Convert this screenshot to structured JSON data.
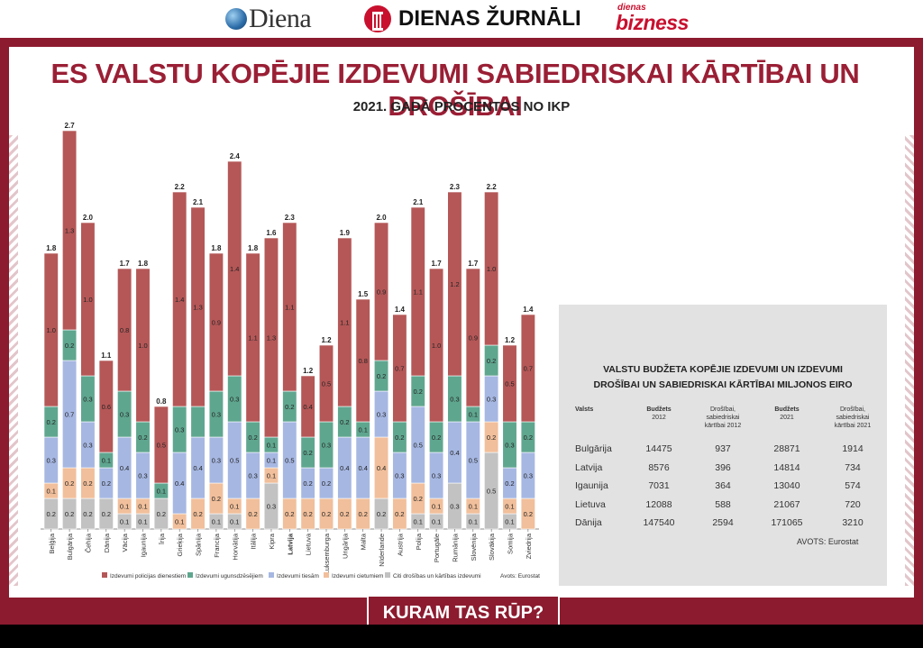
{
  "header": {
    "brands": [
      "Diena",
      "DIENAS ŽURNĀLI",
      "dienas",
      "bizness"
    ]
  },
  "title": "ES VALSTU KOPĒJIE IZDEVUMI SABIEDRISKAI KĀRTĪBAI UN DROŠĪBAI",
  "subtitle": "2021. GADĀ PROCENTOS NO IKP",
  "colors": {
    "police": "#b55757",
    "fire": "#5fa68f",
    "courts": "#a6b7e2",
    "prisons": "#f1bf9b",
    "other": "#c2c2c2",
    "frame": "#8c1b2f"
  },
  "chart_data": {
    "type": "bar",
    "stacked": true,
    "categories": [
      "Beļģija",
      "Bulgārija",
      "Čehija",
      "Dānija",
      "Vācija",
      "Igaunija",
      "Īrija",
      "Grieķija",
      "Spānija",
      "Francija",
      "Horvātija",
      "Itālija",
      "Kipra",
      "Latvija",
      "Lietuva",
      "Luksemburga",
      "Ungārija",
      "Malta",
      "Nīderlande",
      "Austrija",
      "Polija",
      "Portugāle",
      "Rumānija",
      "Slovēnija",
      "Slovākija",
      "Somija",
      "Zviedrija"
    ],
    "highlight": "Latvija",
    "totals": [
      "1.8",
      "2.7",
      "2.0",
      "1.1",
      "1.7",
      "1.8",
      "0.8",
      "2.2",
      "2.1",
      "1.8",
      "2.4",
      "1.8",
      "1.6",
      "2.3",
      "1.2",
      "1.2",
      "1.9",
      "1.5",
      "2.0",
      "1.4",
      "2.1",
      "1.7",
      "2.3",
      "1.7",
      "2.2",
      "1.2",
      "1.4"
    ],
    "series": [
      {
        "name": "Citi drošības un kārtības izdevumi",
        "color": "#c2c2c2",
        "values": [
          0.2,
          0.2,
          0.2,
          0.2,
          0.1,
          0.1,
          0.2,
          0.0,
          0.0,
          0.1,
          0.1,
          0.0,
          0.3,
          0.0,
          0.0,
          0.0,
          0.0,
          0.0,
          0.2,
          0.0,
          0.1,
          0.1,
          0.3,
          0.1,
          0.5,
          0.1,
          0.0
        ],
        "labels": [
          "0.2",
          "0.2",
          "0.2",
          "0.2",
          "0.1",
          "0.1",
          "0.2",
          "",
          "",
          "0.1",
          "0.1",
          "",
          "0.3",
          "",
          "",
          "",
          "",
          "",
          "0.2",
          "",
          "0.1",
          "0.1",
          "0.3",
          "0.1",
          "0.5",
          "0.1",
          ""
        ]
      },
      {
        "name": "Izdevumi cietumiem",
        "color": "#f1bf9b",
        "values": [
          0.1,
          0.2,
          0.2,
          0.0,
          0.1,
          0.1,
          0.0,
          0.1,
          0.2,
          0.2,
          0.1,
          0.2,
          0.1,
          0.2,
          0.2,
          0.2,
          0.2,
          0.2,
          0.4,
          0.2,
          0.2,
          0.1,
          0.0,
          0.1,
          0.2,
          0.1,
          0.2
        ],
        "labels": [
          "0.1",
          "0.2",
          "0.2",
          "",
          "0.1",
          "0.1",
          "",
          "0.1",
          "0.2",
          "0.2",
          "0.1",
          "0.2",
          "0.1",
          "0.2",
          "0.2",
          "0.2",
          "0.2",
          "0.2",
          "0.4",
          "0.2",
          "0.2",
          "0.1",
          "",
          "0.1",
          "0.2",
          "0.1",
          "0.2"
        ]
      },
      {
        "name": "Izdevumi tiesām",
        "color": "#a6b7e2",
        "values": [
          0.3,
          0.7,
          0.3,
          0.2,
          0.4,
          0.3,
          0.0,
          0.4,
          0.4,
          0.3,
          0.5,
          0.3,
          0.1,
          0.5,
          0.2,
          0.2,
          0.4,
          0.4,
          0.3,
          0.3,
          0.5,
          0.3,
          0.4,
          0.5,
          0.3,
          0.2,
          0.3
        ],
        "labels": [
          "0.3",
          "0.7",
          "0.3",
          "0.2",
          "0.4",
          "0.3",
          "",
          "0.4",
          "0.4",
          "0.3",
          "0.5",
          "0.3",
          "0.1",
          "0.5",
          "0.2",
          "0.2",
          "0.4",
          "0.4",
          "0.3",
          "0.3",
          "0.5",
          "0.3",
          "0.4",
          "0.5",
          "0.3",
          "0.2",
          "0.3"
        ]
      },
      {
        "name": "Izdevumi ugunsdzēsējiem",
        "color": "#5fa68f",
        "values": [
          0.2,
          0.2,
          0.3,
          0.1,
          0.3,
          0.2,
          0.1,
          0.3,
          0.2,
          0.3,
          0.3,
          0.2,
          0.1,
          0.2,
          0.2,
          0.3,
          0.2,
          0.1,
          0.2,
          0.2,
          0.2,
          0.2,
          0.3,
          0.1,
          0.2,
          0.3,
          0.2
        ],
        "labels": [
          "0.2",
          "0.2",
          "0.3",
          "0.1",
          "0.3",
          "0.2",
          "0.1",
          "0.3",
          "",
          "0.3",
          "0.3",
          "0.2",
          "0.1",
          "0.2",
          "0.2",
          "0.3",
          "0.2",
          "0.1",
          "0.2",
          "0.2",
          "0.2",
          "0.2",
          "0.3",
          "0.1",
          "0.2",
          "0.3",
          "0.2"
        ]
      },
      {
        "name": "Izdevumi policijas dienestiem",
        "color": "#b55757",
        "values": [
          1.0,
          1.3,
          1.0,
          0.6,
          0.8,
          1.0,
          0.5,
          1.4,
          1.3,
          0.9,
          1.4,
          1.1,
          1.3,
          1.1,
          0.4,
          0.5,
          1.1,
          0.8,
          0.9,
          0.7,
          1.1,
          1.0,
          1.2,
          0.9,
          1.0,
          0.5,
          0.7
        ],
        "labels": [
          "1.0",
          "1.3",
          "1.0",
          "0.6",
          "0.8",
          "1.0",
          "0.5",
          "1.4",
          "1.3",
          "0.9",
          "1.4",
          "1.1",
          "1.3",
          "1.1",
          "0.4",
          "0.5",
          "1.1",
          "0.8",
          "0.9",
          "0.7",
          "1.1",
          "1.0",
          "1.2",
          "0.9",
          "1.0",
          "0.5",
          "0.7"
        ]
      }
    ],
    "legend": [
      "Izdevumi policijas dienestiem",
      "Izdevumi ugunsdzēsējiem",
      "Izdevumi tiesām",
      "Izdevumi cietumiem",
      "Citi drošības un kārtības izdevumi"
    ],
    "legend_placement": "bottom",
    "source": "Avots: Eurostat"
  },
  "table": {
    "title_line1": "VALSTU BUDŽETA KOPĒJIE IZDEVUMI UN IZDEVUMI",
    "title_line2": "DROŠĪBAI UN SABIEDRISKAI KĀRTĪBAI MILJONOS EIRO",
    "headers": [
      {
        "l1": "Valsts",
        "l2": "",
        "l3": ""
      },
      {
        "l1": "Budžets",
        "l2": "2012",
        "l3": ""
      },
      {
        "l1": "Drošībai,",
        "l2": "sabiedriskai",
        "l3": "kārtībai 2012"
      },
      {
        "l1": "Budžets",
        "l2": "2021",
        "l3": ""
      },
      {
        "l1": "Drošībai,",
        "l2": "sabiedriskai",
        "l3": "kārtībai 2021"
      }
    ],
    "rows": [
      [
        "Bulgārija",
        "14475",
        "937",
        "28871",
        "1914"
      ],
      [
        "Latvija",
        "8576",
        "396",
        "14814",
        "734"
      ],
      [
        "Igaunija",
        "7031",
        "364",
        "13040",
        "574"
      ],
      [
        "Lietuva",
        "12088",
        "588",
        "21067",
        "720"
      ],
      [
        "Dānija",
        "147540",
        "2594",
        "171065",
        "3210"
      ]
    ],
    "source": "AVOTS: Eurostat"
  },
  "footer": {
    "banner": "KURAM TAS RŪP?"
  }
}
